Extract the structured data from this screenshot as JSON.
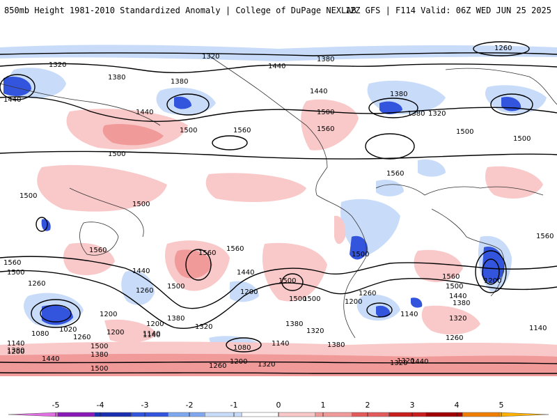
{
  "header": {
    "title_left": "850mb Height 1981-2010 Standardized Anomaly | College of DuPage NEXLAB",
    "title_right": "12Z GFS | F114 Valid: 06Z WED JUN 25 2025"
  },
  "colorbar": {
    "ticks": [
      "-5",
      "-4",
      "-3",
      "-2",
      "-1",
      "0",
      "1",
      "2",
      "3",
      "4",
      "5"
    ],
    "colors": [
      "#e16fe3",
      "#8a1ab8",
      "#1a2fb0",
      "#3355dd",
      "#7fa8f0",
      "#c8dcfa",
      "#ffffff",
      "#f9c8c8",
      "#f19a9a",
      "#e35a5a",
      "#c81e1e",
      "#a00000",
      "#f07f00",
      "#ffb000"
    ]
  },
  "contour_labels": [
    "1320",
    "1380",
    "1440",
    "1260",
    "1380",
    "1320",
    "1380",
    "1440",
    "1380",
    "1440",
    "1500",
    "1560",
    "1500",
    "1500",
    "1440",
    "1500",
    "1320",
    "1380",
    "1560",
    "1500",
    "1560",
    "1500",
    "1500",
    "1560",
    "1560",
    "1500",
    "1440",
    "1260",
    "1200",
    "1500",
    "1560",
    "1500",
    "1440",
    "1200",
    "1560",
    "1500",
    "1380",
    "1320",
    "1260",
    "1200",
    "1140",
    "1080",
    "1020",
    "1200",
    "1140",
    "1200",
    "1500",
    "1260",
    "1380",
    "1140",
    "1500",
    "1380",
    "1440",
    "1500",
    "1320",
    "1080",
    "1260",
    "1200",
    "1320",
    "1140",
    "1380",
    "1320",
    "1200",
    "1140",
    "1260",
    "1200",
    "1500",
    "1560",
    "1440",
    "1380",
    "1320",
    "1260",
    "1500",
    "1380",
    "1320",
    "1140",
    "1560",
    "1440"
  ]
}
